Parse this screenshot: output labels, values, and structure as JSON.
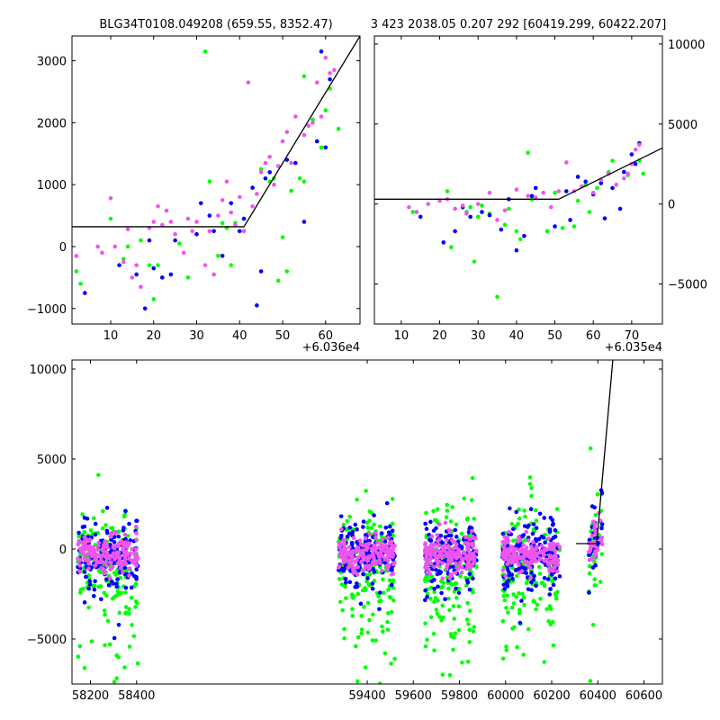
{
  "figure": {
    "title_left": "BLG34T0108.049208 (659.55, 8352.47)",
    "title_right": "3 423 2038.05 0.207 292 [60419.299, 60422.207]"
  },
  "colors": {
    "green": "#00ff00",
    "blue": "#0000ff",
    "pink": "#ee55ee",
    "line": "#000000"
  },
  "chart_data": [
    {
      "type": "scatter",
      "panel": "top-left",
      "xlim": [
        60361,
        60368
      ],
      "ylim": [
        -1250,
        3400
      ],
      "x_offset_label": "+6.036e4",
      "x_ticks": [
        10,
        20,
        30,
        40,
        50,
        60
      ],
      "y_ticks": [
        -1000,
        0,
        1000,
        2000,
        3000
      ],
      "y_axis_side": "left",
      "model_line": [
        [
          1,
          320
        ],
        [
          41,
          320
        ],
        [
          68,
          3400
        ]
      ],
      "series": [
        {
          "color": "green",
          "points": [
            [
              2,
              -400
            ],
            [
              3,
              -600
            ],
            [
              10,
              450
            ],
            [
              13,
              -200
            ],
            [
              14,
              0
            ],
            [
              17,
              100
            ],
            [
              19,
              -300
            ],
            [
              20,
              -850
            ],
            [
              21,
              -300
            ],
            [
              22,
              -500
            ],
            [
              26,
              50
            ],
            [
              28,
              -500
            ],
            [
              32,
              3150
            ],
            [
              33,
              1050
            ],
            [
              35,
              -150
            ],
            [
              36,
              380
            ],
            [
              37,
              300
            ],
            [
              38,
              -300
            ],
            [
              39,
              380
            ],
            [
              41,
              450
            ],
            [
              45,
              1250
            ],
            [
              47,
              1050
            ],
            [
              48,
              1100
            ],
            [
              49,
              -550
            ],
            [
              50,
              150
            ],
            [
              51,
              -400
            ],
            [
              52,
              900
            ],
            [
              54,
              1100
            ],
            [
              55,
              1050
            ],
            [
              55,
              2750
            ],
            [
              57,
              2050
            ],
            [
              58,
              1700
            ],
            [
              59,
              1600
            ],
            [
              60,
              2200
            ],
            [
              61,
              2550
            ],
            [
              63,
              1900
            ]
          ]
        },
        {
          "color": "blue",
          "points": [
            [
              4,
              -750
            ],
            [
              12,
              -300
            ],
            [
              16,
              -450
            ],
            [
              18,
              -1000
            ],
            [
              19,
              100
            ],
            [
              20,
              -350
            ],
            [
              22,
              -500
            ],
            [
              24,
              -450
            ],
            [
              25,
              100
            ],
            [
              30,
              200
            ],
            [
              31,
              700
            ],
            [
              33,
              500
            ],
            [
              34,
              250
            ],
            [
              36,
              -150
            ],
            [
              38,
              700
            ],
            [
              40,
              250
            ],
            [
              41,
              450
            ],
            [
              43,
              950
            ],
            [
              44,
              -950
            ],
            [
              45,
              -400
            ],
            [
              46,
              1100
            ],
            [
              47,
              1200
            ],
            [
              51,
              1400
            ],
            [
              53,
              1350
            ],
            [
              55,
              400
            ],
            [
              58,
              1700
            ],
            [
              59,
              3150
            ],
            [
              60,
              1600
            ],
            [
              61,
              2700
            ]
          ]
        },
        {
          "color": "pink",
          "points": [
            [
              2,
              -150
            ],
            [
              7,
              0
            ],
            [
              8,
              -100
            ],
            [
              10,
              780
            ],
            [
              11,
              0
            ],
            [
              13,
              -250
            ],
            [
              14,
              280
            ],
            [
              15,
              -500
            ],
            [
              16,
              -300
            ],
            [
              17,
              -650
            ],
            [
              19,
              300
            ],
            [
              20,
              400
            ],
            [
              21,
              650
            ],
            [
              22,
              350
            ],
            [
              23,
              580
            ],
            [
              24,
              400
            ],
            [
              25,
              200
            ],
            [
              27,
              -100
            ],
            [
              28,
              450
            ],
            [
              29,
              250
            ],
            [
              30,
              400
            ],
            [
              32,
              -300
            ],
            [
              33,
              250
            ],
            [
              34,
              -450
            ],
            [
              35,
              500
            ],
            [
              36,
              750
            ],
            [
              37,
              1050
            ],
            [
              38,
              550
            ],
            [
              39,
              350
            ],
            [
              40,
              800
            ],
            [
              41,
              250
            ],
            [
              42,
              2650
            ],
            [
              43,
              650
            ],
            [
              44,
              850
            ],
            [
              45,
              1200
            ],
            [
              46,
              1350
            ],
            [
              47,
              1450
            ],
            [
              48,
              1000
            ],
            [
              49,
              1300
            ],
            [
              50,
              1700
            ],
            [
              51,
              1850
            ],
            [
              52,
              1350
            ],
            [
              53,
              2100
            ],
            [
              55,
              1800
            ],
            [
              56,
              1950
            ],
            [
              57,
              2000
            ],
            [
              58,
              2650
            ],
            [
              59,
              2100
            ],
            [
              60,
              3050
            ],
            [
              61,
              2800
            ],
            [
              62,
              2850
            ]
          ]
        }
      ]
    },
    {
      "type": "scatter",
      "panel": "top-right",
      "xlim": [
        60352,
        60358
      ],
      "ylim": [
        -7500,
        10500
      ],
      "x_offset_label": "+6.035e4",
      "x_ticks": [
        10,
        20,
        30,
        40,
        50,
        60,
        70
      ],
      "y_ticks": [
        -5000,
        0,
        5000,
        10000
      ],
      "y_axis_side": "right",
      "model_line": [
        [
          2,
          300
        ],
        [
          51,
          300
        ],
        [
          78,
          3500
        ]
      ],
      "series": [
        {
          "color": "green",
          "points": [
            [
              13,
              -500
            ],
            [
              22,
              800
            ],
            [
              23,
              -2700
            ],
            [
              27,
              -500
            ],
            [
              28,
              -200
            ],
            [
              29,
              -3600
            ],
            [
              30,
              -800
            ],
            [
              31,
              -100
            ],
            [
              33,
              -600
            ],
            [
              35,
              -5800
            ],
            [
              37,
              -1300
            ],
            [
              38,
              -300
            ],
            [
              40,
              -1700
            ],
            [
              41,
              -2200
            ],
            [
              43,
              3200
            ],
            [
              44,
              300
            ],
            [
              48,
              -1700
            ],
            [
              50,
              700
            ],
            [
              52,
              -1500
            ],
            [
              55,
              -1400
            ],
            [
              56,
              200
            ],
            [
              58,
              1200
            ],
            [
              59,
              -500
            ],
            [
              61,
              1000
            ],
            [
              64,
              2000
            ],
            [
              65,
              2700
            ],
            [
              69,
              1800
            ],
            [
              72,
              2700
            ],
            [
              73,
              1900
            ]
          ]
        },
        {
          "color": "blue",
          "points": [
            [
              15,
              -800
            ],
            [
              21,
              -2400
            ],
            [
              24,
              -1700
            ],
            [
              26,
              -200
            ],
            [
              28,
              -800
            ],
            [
              31,
              -500
            ],
            [
              33,
              -700
            ],
            [
              36,
              -1600
            ],
            [
              38,
              300
            ],
            [
              40,
              -2900
            ],
            [
              42,
              -2000
            ],
            [
              44,
              500
            ],
            [
              45,
              1000
            ],
            [
              50,
              -1400
            ],
            [
              53,
              800
            ],
            [
              54,
              -1000
            ],
            [
              56,
              1700
            ],
            [
              58,
              1400
            ],
            [
              60,
              600
            ],
            [
              62,
              1300
            ],
            [
              63,
              -900
            ],
            [
              65,
              1000
            ],
            [
              67,
              -300
            ],
            [
              68,
              2000
            ],
            [
              70,
              3100
            ],
            [
              71,
              2500
            ],
            [
              72,
              3800
            ]
          ]
        },
        {
          "color": "pink",
          "points": [
            [
              12,
              -200
            ],
            [
              14,
              -500
            ],
            [
              17,
              0
            ],
            [
              20,
              200
            ],
            [
              22,
              300
            ],
            [
              24,
              -300
            ],
            [
              26,
              -100
            ],
            [
              27,
              -600
            ],
            [
              30,
              0
            ],
            [
              33,
              700
            ],
            [
              35,
              -1000
            ],
            [
              37,
              -400
            ],
            [
              40,
              900
            ],
            [
              43,
              500
            ],
            [
              45,
              400
            ],
            [
              47,
              700
            ],
            [
              49,
              -200
            ],
            [
              51,
              800
            ],
            [
              53,
              2600
            ],
            [
              55,
              800
            ],
            [
              57,
              1100
            ],
            [
              60,
              700
            ],
            [
              62,
              1500
            ],
            [
              64,
              1900
            ],
            [
              66,
              1200
            ],
            [
              68,
              1600
            ],
            [
              69,
              1900
            ],
            [
              70,
              2500
            ],
            [
              71,
              3400
            ],
            [
              72,
              3700
            ]
          ]
        }
      ]
    },
    {
      "type": "scatter",
      "panel": "bottom",
      "xlim": [
        58120,
        60680
      ],
      "ylim": [
        -7500,
        10500
      ],
      "x_ticks": [
        58200,
        58400,
        59400,
        59600,
        59800,
        60000,
        60200,
        60400,
        60600
      ],
      "y_ticks": [
        -5000,
        0,
        5000,
        10000
      ],
      "y_axis_side": "left",
      "seasons": [
        [
          58145,
          58410
        ],
        [
          59275,
          59520
        ],
        [
          59650,
          59875
        ],
        [
          59985,
          60235
        ],
        [
          60360,
          60425
        ]
      ],
      "model_line": [
        [
          60305,
          300
        ],
        [
          60395,
          300
        ],
        [
          60465,
          10500
        ]
      ]
    }
  ]
}
